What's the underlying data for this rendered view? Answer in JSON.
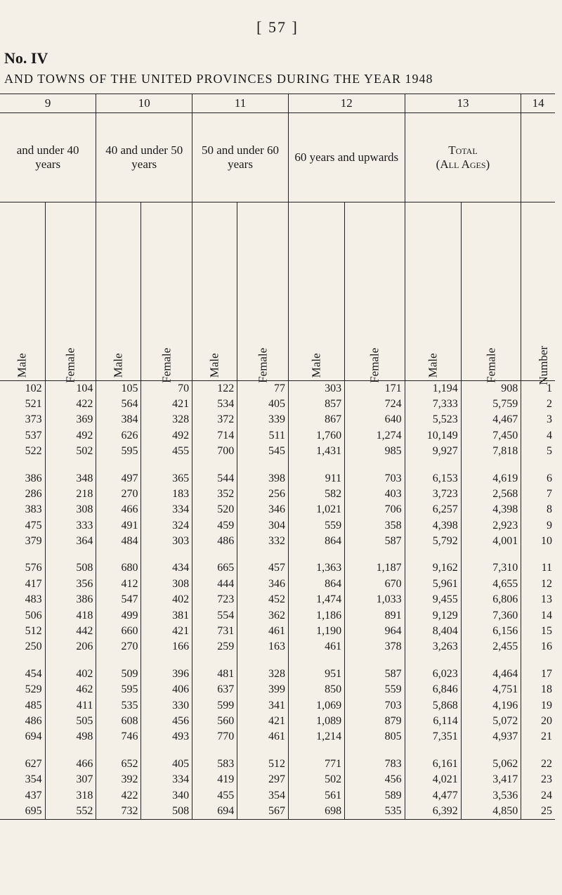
{
  "page_number_str": "[ 57 ]",
  "no_iv": "No. IV",
  "title_line": "AND TOWNS OF THE UNITED PROVINCES DURING THE YEAR 1948",
  "col_numbers": [
    "9",
    "10",
    "11",
    "12",
    "13",
    "14"
  ],
  "age_headers": [
    "and under 40 years",
    "40 and under 50 years",
    "50 and under 60 years",
    "60 years and upwards",
    {
      "line1": "Total",
      "line2": "(All Ages)"
    }
  ],
  "sub_headers": [
    "Male",
    "Female",
    "Male",
    "Female",
    "Male",
    "Female",
    "Male",
    "Female",
    "Male",
    "Female",
    "Number"
  ],
  "colors": {
    "page_bg": "#f4f0e8",
    "text": "#1a1a1a",
    "rule": "#222222"
  },
  "typography": {
    "body_pt": 16,
    "header_pt": 18,
    "pgnum_pt": 22
  },
  "table": {
    "type": "table",
    "groups": [
      [
        [
          "102",
          "104",
          "105",
          "70",
          "122",
          "77",
          "303",
          "171",
          "1,194",
          "908",
          "1"
        ],
        [
          "521",
          "422",
          "564",
          "421",
          "534",
          "405",
          "857",
          "724",
          "7,333",
          "5,759",
          "2"
        ],
        [
          "373",
          "369",
          "384",
          "328",
          "372",
          "339",
          "867",
          "640",
          "5,523",
          "4,467",
          "3"
        ],
        [
          "537",
          "492",
          "626",
          "492",
          "714",
          "511",
          "1,760",
          "1,274",
          "10,149",
          "7,450",
          "4"
        ],
        [
          "522",
          "502",
          "595",
          "455",
          "700",
          "545",
          "1,431",
          "985",
          "9,927",
          "7,818",
          "5"
        ]
      ],
      [
        [
          "386",
          "348",
          "497",
          "365",
          "544",
          "398",
          "911",
          "703",
          "6,153",
          "4,619",
          "6"
        ],
        [
          "286",
          "218",
          "270",
          "183",
          "352",
          "256",
          "582",
          "403",
          "3,723",
          "2,568",
          "7"
        ],
        [
          "383",
          "308",
          "466",
          "334",
          "520",
          "346",
          "1,021",
          "706",
          "6,257",
          "4,398",
          "8"
        ],
        [
          "475",
          "333",
          "491",
          "324",
          "459",
          "304",
          "559",
          "358",
          "4,398",
          "2,923",
          "9"
        ],
        [
          "379",
          "364",
          "484",
          "303",
          "486",
          "332",
          "864",
          "587",
          "5,792",
          "4,001",
          "10"
        ]
      ],
      [
        [
          "576",
          "508",
          "680",
          "434",
          "665",
          "457",
          "1,363",
          "1,187",
          "9,162",
          "7,310",
          "11"
        ],
        [
          "417",
          "356",
          "412",
          "308",
          "444",
          "346",
          "864",
          "670",
          "5,961",
          "4,655",
          "12"
        ],
        [
          "483",
          "386",
          "547",
          "402",
          "723",
          "452",
          "1,474",
          "1,033",
          "9,455",
          "6,806",
          "13"
        ],
        [
          "506",
          "418",
          "499",
          "381",
          "554",
          "362",
          "1,186",
          "891",
          "9,129",
          "7,360",
          "14"
        ],
        [
          "512",
          "442",
          "660",
          "421",
          "731",
          "461",
          "1,190",
          "964",
          "8,404",
          "6,156",
          "15"
        ],
        [
          "250",
          "206",
          "270",
          "166",
          "259",
          "163",
          "461",
          "378",
          "3,263",
          "2,455",
          "16"
        ]
      ],
      [
        [
          "454",
          "402",
          "509",
          "396",
          "481",
          "328",
          "951",
          "587",
          "6,023",
          "4,464",
          "17"
        ],
        [
          "529",
          "462",
          "595",
          "406",
          "637",
          "399",
          "850",
          "559",
          "6,846",
          "4,751",
          "18"
        ],
        [
          "485",
          "411",
          "535",
          "330",
          "599",
          "341",
          "1,069",
          "703",
          "5,868",
          "4,196",
          "19"
        ],
        [
          "486",
          "505",
          "608",
          "456",
          "560",
          "421",
          "1,089",
          "879",
          "6,114",
          "5,072",
          "20"
        ],
        [
          "694",
          "498",
          "746",
          "493",
          "770",
          "461",
          "1,214",
          "805",
          "7,351",
          "4,937",
          "21"
        ]
      ],
      [
        [
          "627",
          "466",
          "652",
          "405",
          "583",
          "512",
          "771",
          "783",
          "6,161",
          "5,062",
          "22"
        ],
        [
          "354",
          "307",
          "392",
          "334",
          "419",
          "297",
          "502",
          "456",
          "4,021",
          "3,417",
          "23"
        ],
        [
          "437",
          "318",
          "422",
          "340",
          "455",
          "354",
          "561",
          "589",
          "4,477",
          "3,536",
          "24"
        ],
        [
          "695",
          "552",
          "732",
          "508",
          "694",
          "567",
          "698",
          "535",
          "6,392",
          "4,850",
          "25"
        ]
      ]
    ]
  }
}
